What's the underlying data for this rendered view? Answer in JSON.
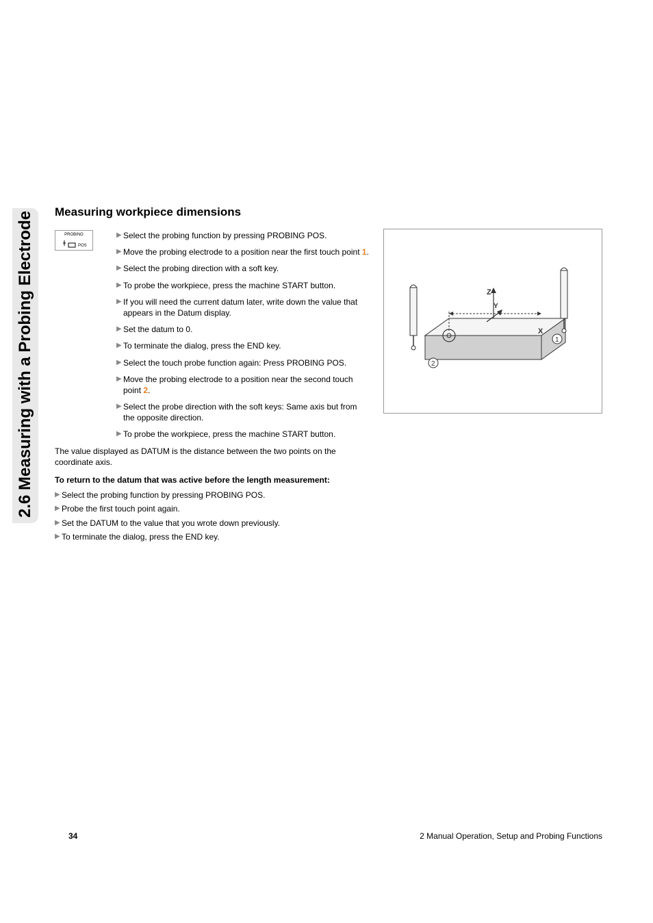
{
  "sidebar": {
    "text": "2.6 Measuring with a Probing Electrode"
  },
  "section": {
    "title": "Measuring workpiece dimensions"
  },
  "icon": {
    "line1": "PROBING",
    "line2": "POS"
  },
  "steps": [
    {
      "pre": "Select the probing function by pressing PROBING POS."
    },
    {
      "pre": "Move the probing electrode to a position near the first touch point ",
      "orange": "1",
      "post": "."
    },
    {
      "pre": "Select the probing direction with a soft key."
    },
    {
      "pre": "To probe the workpiece, press the machine START button."
    },
    {
      "pre": "If you will need the current datum later, write down the value that appears in the Datum display."
    },
    {
      "pre": "Set the datum to 0."
    },
    {
      "pre": "To terminate the dialog, press the END key."
    },
    {
      "pre": "Select the touch probe function again: Press PROBING POS."
    },
    {
      "pre": "Move the probing electrode to a position near the second touch point ",
      "orange": "2",
      "post": "."
    },
    {
      "pre": "Select the probe direction with the soft keys: Same axis but from the opposite direction."
    },
    {
      "pre": "To probe the workpiece, press the machine START button."
    }
  ],
  "body_text": "The value displayed as DATUM is the distance between the two points on the coordinate axis.",
  "subheading": "To return to the datum that was active before the length measurement:",
  "lower_steps": [
    "Select the probing function by pressing PROBING POS.",
    "Probe the first touch point again.",
    "Set the DATUM to the value that you wrote down previously.",
    "To terminate the dialog, press the END key."
  ],
  "diagram": {
    "axes": {
      "x": "X",
      "y": "Y",
      "z": "Z"
    },
    "markers": [
      "1",
      "2"
    ],
    "stroke": "#333333",
    "fill_light": "#f5f5f5",
    "fill_dark": "#d0d0d0"
  },
  "footer": {
    "page": "34",
    "chapter": "2 Manual Operation, Setup and Probing Functions"
  }
}
